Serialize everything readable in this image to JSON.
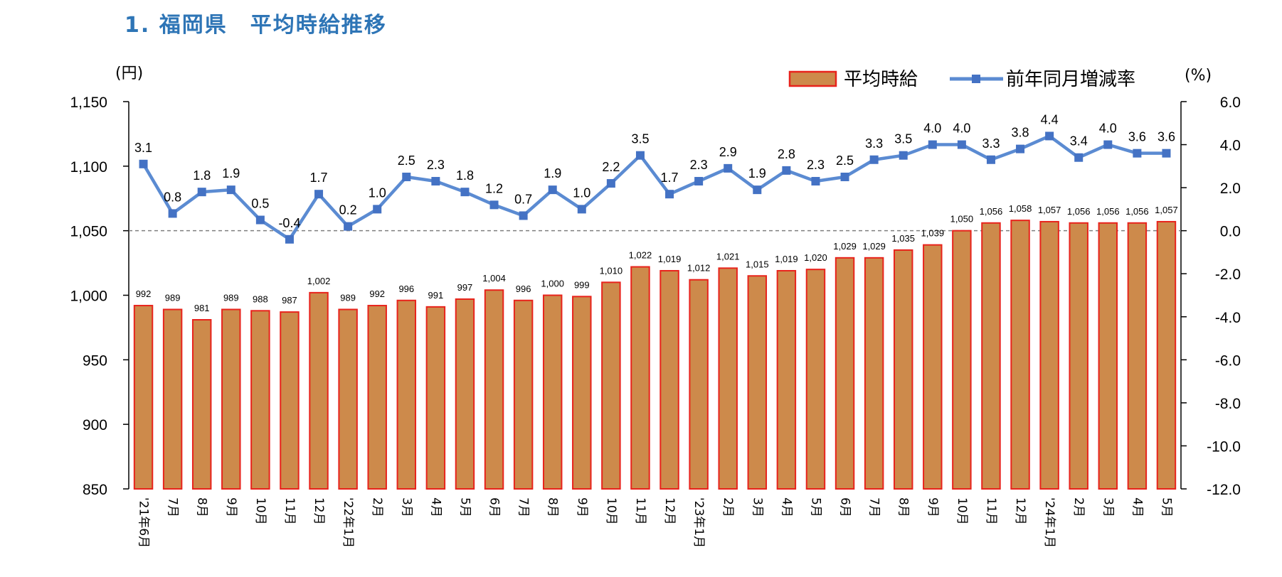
{
  "title": "1. 福岡県　平均時給推移",
  "colors": {
    "title": "#2e75b6",
    "bar_fill": "#cd8a4b",
    "bar_stroke": "#e8231c",
    "line": "#5b8bd2",
    "marker": "#4472c4"
  },
  "chart_data": {
    "type": "bar",
    "left_unit": "(円)",
    "right_unit": "(%)",
    "legend_position": "top-right",
    "grid": false,
    "categories": [
      "'21年6月",
      "7月",
      "8月",
      "9月",
      "10月",
      "11月",
      "12月",
      "'22年1月",
      "2月",
      "3月",
      "4月",
      "5月",
      "6月",
      "7月",
      "8月",
      "9月",
      "10月",
      "11月",
      "12月",
      "'23年1月",
      "2月",
      "3月",
      "4月",
      "5月",
      "6月",
      "7月",
      "8月",
      "9月",
      "10月",
      "11月",
      "12月",
      "'24年1月",
      "2月",
      "3月",
      "4月",
      "5月"
    ],
    "series": [
      {
        "name": "平均時給",
        "type": "bar",
        "axis": "left",
        "values": [
          992,
          989,
          981,
          989,
          988,
          987,
          1002,
          989,
          992,
          996,
          991,
          997,
          1004,
          996,
          1000,
          999,
          1010,
          1022,
          1019,
          1012,
          1021,
          1015,
          1019,
          1020,
          1029,
          1029,
          1035,
          1039,
          1050,
          1056,
          1058,
          1057,
          1056,
          1056,
          1056,
          1057
        ],
        "labels": [
          "992",
          "989",
          "981",
          "989",
          "988",
          "987",
          "1,002",
          "989",
          "992",
          "996",
          "991",
          "997",
          "1,004",
          "996",
          "1,000",
          "999",
          "1,010",
          "1,022",
          "1,019",
          "1,012",
          "1,021",
          "1,015",
          "1,019",
          "1,020",
          "1,029",
          "1,029",
          "1,035",
          "1,039",
          "1,050",
          "1,056",
          "1,058",
          "1,057",
          "1,056",
          "1,056",
          "1,056",
          "1,057"
        ]
      },
      {
        "name": "前年同月増減率",
        "type": "line",
        "axis": "right",
        "values": [
          3.1,
          0.8,
          1.8,
          1.9,
          0.5,
          -0.4,
          1.7,
          0.2,
          1.0,
          2.5,
          2.3,
          1.8,
          1.2,
          0.7,
          1.9,
          1.0,
          2.2,
          3.5,
          1.7,
          2.3,
          2.9,
          1.9,
          2.8,
          2.3,
          2.5,
          3.3,
          3.5,
          4.0,
          4.0,
          3.3,
          3.8,
          4.4,
          3.4,
          4.0,
          3.6,
          3.6
        ],
        "labels": [
          "3.1",
          "0.8",
          "1.8",
          "1.9",
          "0.5",
          "-0.4",
          "1.7",
          "0.2",
          "1.0",
          "2.5",
          "2.3",
          "1.8",
          "1.2",
          "0.7",
          "1.9",
          "1.0",
          "2.2",
          "3.5",
          "1.7",
          "2.3",
          "2.9",
          "1.9",
          "2.8",
          "2.3",
          "2.5",
          "3.3",
          "3.5",
          "4.0",
          "4.0",
          "3.3",
          "3.8",
          "4.4",
          "3.4",
          "4.0",
          "3.6",
          "3.6"
        ]
      }
    ],
    "ylim_left": [
      850,
      1150
    ],
    "yticks_left": [
      "850",
      "900",
      "950",
      "1,000",
      "1,050",
      "1,100",
      "1,150"
    ],
    "ylim_right": [
      -12.0,
      6.0
    ],
    "yticks_right": [
      "-12.0",
      "-10.0",
      "-8.0",
      "-6.0",
      "-4.0",
      "-2.0",
      "0.0",
      "2.0",
      "4.0",
      "6.0"
    ],
    "reference_line": {
      "axis": "right",
      "value": 0.0,
      "style": "dashed"
    }
  }
}
